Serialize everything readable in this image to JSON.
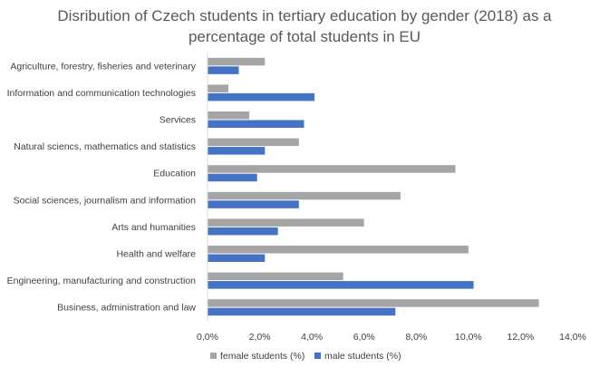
{
  "chart_data": {
    "type": "bar",
    "orientation": "horizontal",
    "title_lines": [
      "Disribution of Czech students in tertiary education by gender (2018) as a",
      "percentage of total students in EU"
    ],
    "categories": [
      "Agriculture, forestry, fisheries and veterinary",
      "Information and communication technologies",
      "Services",
      "Natural sciencs, mathematics and statistics",
      "Education",
      "Social sciences, journalism and information",
      "Arts and humanities",
      "Health and welfare",
      "Engineering, manufacturing and construction",
      "Business, administration and law"
    ],
    "series": [
      {
        "name": "female students (%)",
        "color": "#a5a5a5",
        "values": [
          2.2,
          0.8,
          1.6,
          3.5,
          9.5,
          7.4,
          6.0,
          10.0,
          5.2,
          12.7
        ]
      },
      {
        "name": "male students (%)",
        "color": "#4472c4",
        "values": [
          1.2,
          4.1,
          3.7,
          2.2,
          1.9,
          3.5,
          2.7,
          2.2,
          10.2,
          7.2
        ]
      }
    ],
    "xlim": [
      0,
      14
    ],
    "xticks": [
      "0,0%",
      "2,0%",
      "4,0%",
      "6,0%",
      "8,0%",
      "10,0%",
      "12,0%",
      "14,0%"
    ],
    "grid": false,
    "legend": "bottom"
  }
}
